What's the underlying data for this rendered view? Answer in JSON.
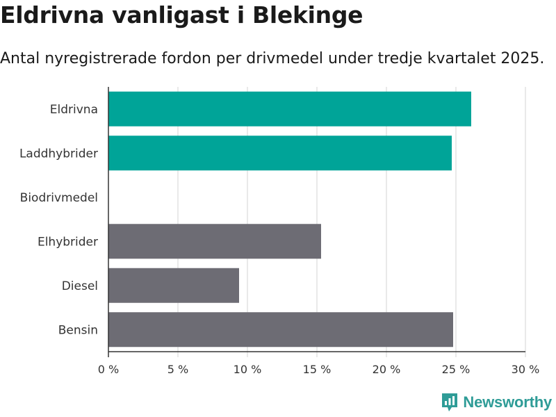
{
  "chart_data": {
    "type": "bar",
    "orientation": "horizontal",
    "title": "Eldrivna vanligast i Blekinge",
    "subtitle": "Antal nyregistrerade fordon per drivmedel under tredje kvartalet 2025.",
    "categories": [
      "Eldrivna",
      "Laddhybrider",
      "Biodrivmedel",
      "Elhybrider",
      "Diesel",
      "Bensin"
    ],
    "values": [
      26.1,
      24.7,
      0,
      15.3,
      9.4,
      24.8
    ],
    "unit": "%",
    "xlim": [
      0,
      30
    ],
    "xticks": [
      "0 %",
      "5 %",
      "10 %",
      "15 %",
      "20 %",
      "25 %",
      "30 %"
    ],
    "grid": true,
    "colors": {
      "Eldrivna": "#00a498",
      "Laddhybrider": "#00a498",
      "Biodrivmedel": "#6d6c74",
      "Elhybrider": "#6d6c74",
      "Diesel": "#6d6c74",
      "Bensin": "#6d6c74"
    }
  },
  "brand": {
    "name": "Newsworthy",
    "color": "#2f9c97"
  }
}
